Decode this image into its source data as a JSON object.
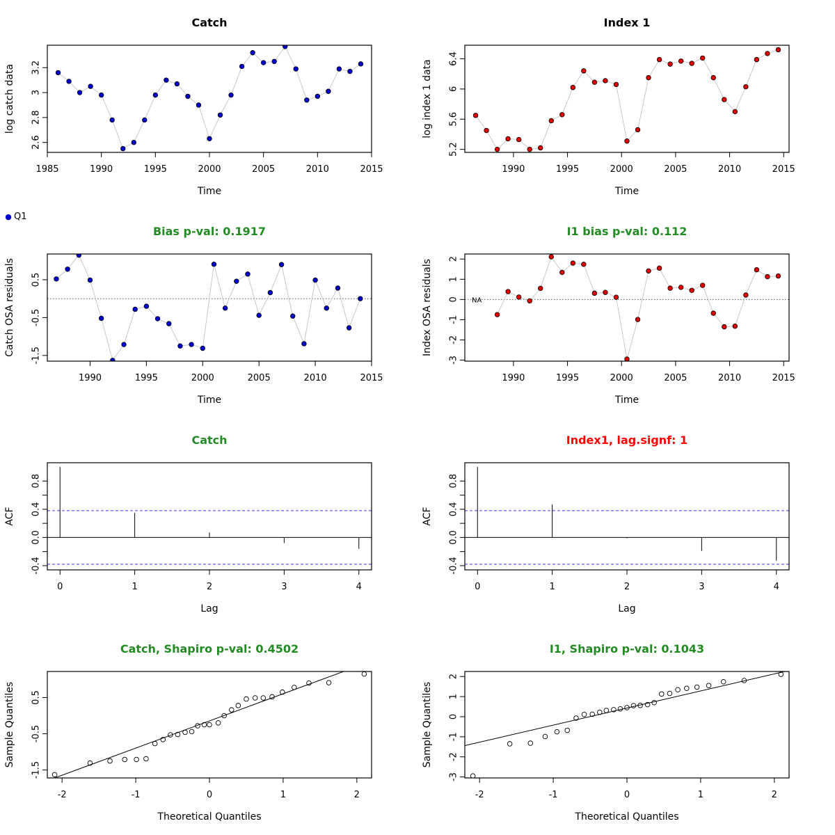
{
  "colors": {
    "green_title": "#228b22",
    "red_title": "#ff0000",
    "blue_pts": "#0000cd",
    "red_pts": "#e00000",
    "conn_line": "#c8c8c8",
    "acf_conf": "#3333ff"
  },
  "legend_q1": "Q1",
  "chart_data": [
    {
      "id": "catch_data",
      "type": "scatter",
      "title": "Catch",
      "title_color": "black",
      "xlabel": "Time",
      "ylabel": "log catch data",
      "xlim": [
        1985,
        2015
      ],
      "ylim": [
        2.52,
        3.38
      ],
      "xticks": [
        1985,
        1990,
        1995,
        2000,
        2005,
        2010,
        2015
      ],
      "yticks": [
        2.6,
        2.8,
        3.0,
        3.2
      ],
      "point_color": "blue",
      "x": [
        1986,
        1987,
        1988,
        1989,
        1990,
        1991,
        1992,
        1993,
        1994,
        1995,
        1996,
        1997,
        1998,
        1999,
        2000,
        2001,
        2002,
        2003,
        2004,
        2005,
        2006,
        2007,
        2008,
        2009,
        2010,
        2011,
        2012,
        2013,
        2014
      ],
      "y": [
        3.16,
        3.09,
        3.0,
        3.05,
        2.98,
        2.78,
        2.55,
        2.6,
        2.78,
        2.98,
        3.1,
        3.07,
        2.97,
        2.9,
        2.63,
        2.82,
        2.98,
        3.21,
        3.32,
        3.24,
        3.25,
        3.37,
        3.19,
        2.94,
        2.97,
        3.01,
        3.19,
        3.17,
        3.23
      ]
    },
    {
      "id": "index_data",
      "type": "scatter",
      "title": "Index 1",
      "title_color": "black",
      "xlabel": "Time",
      "ylabel": "log index 1 data",
      "xlim": [
        1985.5,
        2015.5
      ],
      "ylim": [
        5.16,
        6.58
      ],
      "xticks": [
        1990,
        1995,
        2000,
        2005,
        2010,
        2015
      ],
      "yticks": [
        5.2,
        5.6,
        6.0,
        6.4
      ],
      "point_color": "red",
      "x": [
        1986.5,
        1987.5,
        1988.5,
        1989.5,
        1990.5,
        1991.5,
        1992.5,
        1993.5,
        1994.5,
        1995.5,
        1996.5,
        1997.5,
        1998.5,
        1999.5,
        2000.5,
        2001.5,
        2002.5,
        2003.5,
        2004.5,
        2005.5,
        2006.5,
        2007.5,
        2008.5,
        2009.5,
        2010.5,
        2011.5,
        2012.5,
        2013.5,
        2014.5
      ],
      "y": [
        5.65,
        5.45,
        5.2,
        5.34,
        5.33,
        5.2,
        5.22,
        5.58,
        5.66,
        6.02,
        6.24,
        6.09,
        6.11,
        6.06,
        5.31,
        5.46,
        6.15,
        6.39,
        6.33,
        6.37,
        6.34,
        6.41,
        6.15,
        5.86,
        5.7,
        6.03,
        6.39,
        6.47,
        6.52
      ]
    },
    {
      "id": "catch_resid",
      "type": "scatter",
      "title": "Bias p-val: 0.1917",
      "title_color": "green",
      "xlabel": "Time",
      "ylabel": "Catch OSA residuals",
      "xlim": [
        1986.2,
        2015
      ],
      "ylim": [
        -1.65,
        1.18
      ],
      "xticks": [
        1990,
        1995,
        2000,
        2005,
        2010,
        2015
      ],
      "yticks": [
        -1.5,
        -0.5,
        0.5
      ],
      "point_color": "blue",
      "hline": 0,
      "x": [
        1987,
        1988,
        1989,
        1990,
        1991,
        1992,
        1993,
        1994,
        1995,
        1996,
        1997,
        1998,
        1999,
        2000,
        2001,
        2002,
        2003,
        2004,
        2005,
        2006,
        2007,
        2008,
        2009,
        2010,
        2011,
        2012,
        2013,
        2014
      ],
      "y": [
        0.52,
        0.78,
        1.15,
        0.49,
        -0.52,
        -1.63,
        -1.21,
        -0.28,
        -0.2,
        -0.53,
        -0.66,
        -1.25,
        -1.21,
        -1.31,
        0.91,
        -0.25,
        0.46,
        0.65,
        -0.44,
        0.16,
        0.9,
        -0.46,
        -1.19,
        0.49,
        -0.25,
        0.28,
        -0.77,
        0.0
      ]
    },
    {
      "id": "index_resid",
      "type": "scatter",
      "title": "I1 bias p-val: 0.112",
      "title_color": "green",
      "xlabel": "Time",
      "ylabel": "Index OSA residuals",
      "xlim": [
        1985.5,
        2015.5
      ],
      "ylim": [
        -3.05,
        2.25
      ],
      "xticks": [
        1990,
        1995,
        2000,
        2005,
        2010,
        2015
      ],
      "yticks": [
        -3,
        -2,
        -1,
        0,
        1,
        2
      ],
      "point_color": "red",
      "hline": 0,
      "na_label": "NA",
      "x": [
        1988.5,
        1989.5,
        1990.5,
        1991.5,
        1992.5,
        1993.5,
        1994.5,
        1995.5,
        1996.5,
        1997.5,
        1998.5,
        1999.5,
        2000.5,
        2001.5,
        2002.5,
        2003.5,
        2004.5,
        2005.5,
        2006.5,
        2007.5,
        2008.5,
        2009.5,
        2010.5,
        2011.5,
        2012.5,
        2013.5,
        2014.5
      ],
      "y": [
        -0.75,
        0.39,
        0.12,
        -0.07,
        0.55,
        2.11,
        1.34,
        1.8,
        1.74,
        0.31,
        0.35,
        0.11,
        -2.95,
        -0.99,
        1.41,
        1.55,
        0.56,
        0.6,
        0.45,
        0.7,
        -0.68,
        -1.35,
        -1.32,
        0.22,
        1.47,
        1.13,
        1.16
      ]
    },
    {
      "id": "catch_acf",
      "type": "bar",
      "title": "Catch",
      "title_color": "green",
      "xlabel": "Lag",
      "ylabel": "ACF",
      "xlim": [
        -0.17,
        4.17
      ],
      "ylim": [
        -0.46,
        1.06
      ],
      "xticks": [
        0,
        1,
        2,
        3,
        4
      ],
      "yticks": [
        -0.4,
        -0.2,
        0.0,
        0.2,
        0.4,
        0.6,
        0.8
      ],
      "ytick_labels": [
        "-0.4",
        "",
        "0.0",
        "",
        "0.4",
        "",
        "0.8"
      ],
      "lags": [
        0,
        1,
        2,
        3,
        4
      ],
      "values": [
        1.0,
        0.35,
        0.07,
        -0.08,
        -0.16
      ],
      "conf": 0.38
    },
    {
      "id": "index_acf",
      "type": "bar",
      "title": "Index1, lag.signf: 1",
      "title_color": "red",
      "xlabel": "Lag",
      "ylabel": "ACF",
      "xlim": [
        -0.17,
        4.17
      ],
      "ylim": [
        -0.46,
        1.06
      ],
      "xticks": [
        0,
        1,
        2,
        3,
        4
      ],
      "yticks": [
        -0.4,
        -0.2,
        0.0,
        0.2,
        0.4,
        0.6,
        0.8
      ],
      "ytick_labels": [
        "-0.4",
        "",
        "0.0",
        "",
        "0.4",
        "",
        "0.8"
      ],
      "lags": [
        0,
        1,
        2,
        3,
        4
      ],
      "values": [
        1.0,
        0.47,
        -0.01,
        -0.19,
        -0.33
      ],
      "conf": 0.38
    },
    {
      "id": "catch_qq",
      "type": "scatter",
      "title": "Catch, Shapiro p-val: 0.4502",
      "title_color": "green",
      "xlabel": "Theoretical Quantiles",
      "ylabel": "Sample Quantiles",
      "xlim": [
        -2.2,
        2.2
      ],
      "ylim": [
        -1.72,
        1.22
      ],
      "xticks": [
        -2,
        -1,
        0,
        1,
        2
      ],
      "yticks": [
        -1.5,
        -0.5,
        0.5
      ],
      "open_points": true,
      "ref_line": {
        "intercept": -0.145,
        "slope": 0.75
      },
      "x": [
        -2.1,
        -1.62,
        -1.35,
        -1.15,
        -0.99,
        -0.86,
        -0.74,
        -0.63,
        -0.53,
        -0.43,
        -0.33,
        -0.24,
        -0.16,
        -0.07,
        0.0,
        0.12,
        0.2,
        0.3,
        0.39,
        0.5,
        0.62,
        0.73,
        0.85,
        0.99,
        1.15,
        1.35,
        1.62,
        2.1
      ],
      "y": [
        -1.63,
        -1.31,
        -1.25,
        -1.21,
        -1.21,
        -1.19,
        -0.77,
        -0.66,
        -0.53,
        -0.52,
        -0.46,
        -0.44,
        -0.28,
        -0.25,
        -0.25,
        -0.2,
        0.0,
        0.16,
        0.28,
        0.46,
        0.49,
        0.49,
        0.52,
        0.65,
        0.78,
        0.9,
        0.91,
        1.15
      ]
    },
    {
      "id": "index_qq",
      "type": "scatter",
      "title": "I1, Shapiro p-val: 0.1043",
      "title_color": "green",
      "xlabel": "Theoretical Quantiles",
      "ylabel": "Sample Quantiles",
      "xlim": [
        -2.2,
        2.2
      ],
      "ylim": [
        -3.05,
        2.25
      ],
      "xticks": [
        -2,
        -1,
        0,
        1,
        2
      ],
      "yticks": [
        -3,
        -2,
        -1,
        0,
        1,
        2
      ],
      "open_points": true,
      "ref_line": {
        "intercept": 0.43,
        "slope": 0.85
      },
      "x": [
        -2.09,
        -1.59,
        -1.31,
        -1.11,
        -0.95,
        -0.81,
        -0.69,
        -0.58,
        -0.47,
        -0.37,
        -0.28,
        -0.18,
        -0.09,
        0.0,
        0.09,
        0.18,
        0.28,
        0.37,
        0.47,
        0.58,
        0.69,
        0.81,
        0.95,
        1.11,
        1.31,
        1.59,
        2.09
      ],
      "y": [
        -2.95,
        -1.35,
        -1.32,
        -0.99,
        -0.75,
        -0.68,
        -0.07,
        0.11,
        0.12,
        0.22,
        0.31,
        0.35,
        0.39,
        0.45,
        0.55,
        0.56,
        0.6,
        0.7,
        1.13,
        1.16,
        1.34,
        1.41,
        1.47,
        1.55,
        1.74,
        1.8,
        2.11
      ]
    }
  ]
}
